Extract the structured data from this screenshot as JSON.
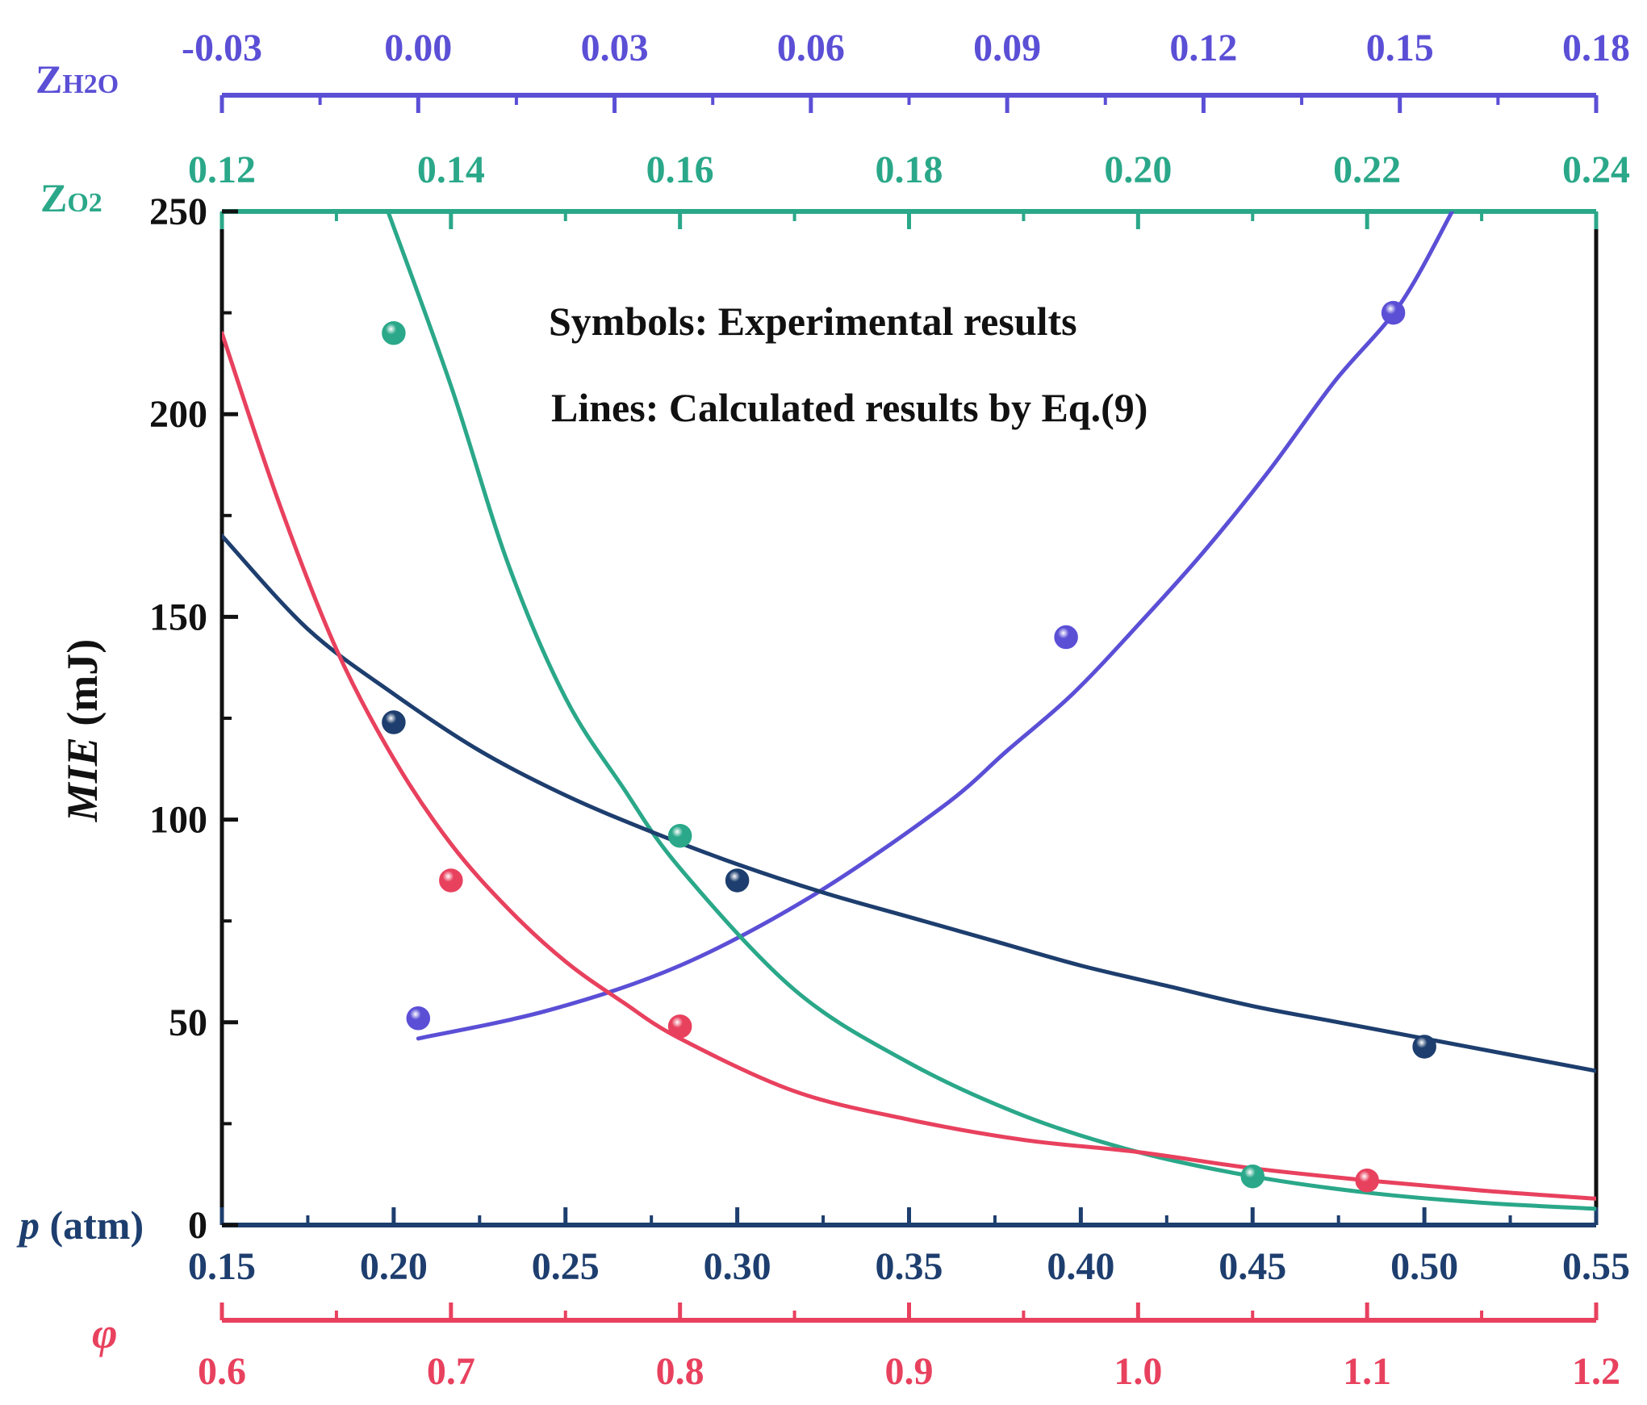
{
  "chart_data": {
    "type": "line",
    "title": "",
    "annotations": [
      "Symbols: Experimental results",
      "Lines: Calculated results by Eq.(9)"
    ],
    "ylabel_main": "MIE",
    "ylabel_unit": " (mJ)",
    "ylim": [
      0,
      250
    ],
    "yticks": [
      "0",
      "50",
      "100",
      "150",
      "200",
      "250"
    ],
    "yticks_values": [
      0,
      50,
      100,
      150,
      200,
      250
    ],
    "axes": {
      "zh2o": {
        "label_main": "Z",
        "label_sub": "H2O",
        "color": "#5b4fd6",
        "range": [
          -0.03,
          0.18
        ],
        "ticks": [
          "-0.03",
          "0.00",
          "0.03",
          "0.06",
          "0.09",
          "0.12",
          "0.15",
          "0.18"
        ],
        "tick_values": [
          -0.03,
          0.0,
          0.03,
          0.06,
          0.09,
          0.12,
          0.15,
          0.18
        ]
      },
      "zo2": {
        "label_main": "Z",
        "label_sub": "O2",
        "color": "#2aa889",
        "range": [
          0.12,
          0.24
        ],
        "ticks": [
          "0.12",
          "0.14",
          "0.16",
          "0.18",
          "0.20",
          "0.22",
          "0.24"
        ],
        "tick_values": [
          0.12,
          0.14,
          0.16,
          0.18,
          0.2,
          0.22,
          0.24
        ]
      },
      "p": {
        "label_main": "p",
        "label_unit": " (atm)",
        "color": "#1d3e6e",
        "range": [
          0.15,
          0.55
        ],
        "ticks": [
          "0.15",
          "0.20",
          "0.25",
          "0.30",
          "0.35",
          "0.40",
          "0.45",
          "0.50",
          "0.55"
        ],
        "tick_values": [
          0.15,
          0.2,
          0.25,
          0.3,
          0.35,
          0.4,
          0.45,
          0.5,
          0.55
        ]
      },
      "phi": {
        "label_main": "φ",
        "color": "#e8415e",
        "range": [
          0.6,
          1.2
        ],
        "ticks": [
          "0.6",
          "0.7",
          "0.8",
          "0.9",
          "1.0",
          "1.1",
          "1.2"
        ],
        "tick_values": [
          0.6,
          0.7,
          0.8,
          0.9,
          1.0,
          1.1,
          1.2
        ]
      }
    },
    "series": [
      {
        "name": "Z_H2O",
        "axis": "zh2o",
        "color": "#5b4fd6",
        "points": [
          [
            0.0,
            51
          ],
          [
            0.099,
            145
          ],
          [
            0.149,
            225
          ]
        ],
        "curve": [
          [
            0.0,
            46
          ],
          [
            0.02,
            53
          ],
          [
            0.04,
            64
          ],
          [
            0.06,
            81
          ],
          [
            0.08,
            103
          ],
          [
            0.09,
            117
          ],
          [
            0.1,
            131
          ],
          [
            0.11,
            148
          ],
          [
            0.12,
            166
          ],
          [
            0.13,
            186
          ],
          [
            0.14,
            208
          ],
          [
            0.15,
            227
          ],
          [
            0.158,
            250
          ]
        ]
      },
      {
        "name": "Z_O2",
        "axis": "zo2",
        "color": "#2aa889",
        "points": [
          [
            0.135,
            220
          ],
          [
            0.16,
            96
          ],
          [
            0.21,
            12
          ]
        ],
        "curve": [
          [
            0.1345,
            250
          ],
          [
            0.14,
            207
          ],
          [
            0.145,
            163
          ],
          [
            0.15,
            130
          ],
          [
            0.155,
            108
          ],
          [
            0.16,
            88
          ],
          [
            0.17,
            58
          ],
          [
            0.18,
            40
          ],
          [
            0.19,
            27
          ],
          [
            0.2,
            18
          ],
          [
            0.21,
            12
          ],
          [
            0.22,
            8
          ],
          [
            0.23,
            5.5
          ],
          [
            0.24,
            4
          ]
        ]
      },
      {
        "name": "p",
        "axis": "p",
        "color": "#1d3e6e",
        "points": [
          [
            0.2,
            124
          ],
          [
            0.3,
            85
          ],
          [
            0.5,
            44
          ]
        ],
        "curve": [
          [
            0.15,
            170
          ],
          [
            0.175,
            147
          ],
          [
            0.2,
            131
          ],
          [
            0.225,
            117
          ],
          [
            0.25,
            106
          ],
          [
            0.275,
            97
          ],
          [
            0.3,
            89
          ],
          [
            0.325,
            82
          ],
          [
            0.35,
            76
          ],
          [
            0.375,
            70
          ],
          [
            0.4,
            64
          ],
          [
            0.425,
            59
          ],
          [
            0.45,
            54
          ],
          [
            0.475,
            50
          ],
          [
            0.5,
            46
          ],
          [
            0.525,
            42
          ],
          [
            0.55,
            38
          ]
        ]
      },
      {
        "name": "phi",
        "axis": "phi",
        "color": "#e8415e",
        "points": [
          [
            0.7,
            85
          ],
          [
            0.8,
            49
          ],
          [
            1.1,
            11
          ]
        ],
        "curve": [
          [
            0.6,
            220
          ],
          [
            0.625,
            178
          ],
          [
            0.65,
            142
          ],
          [
            0.675,
            115
          ],
          [
            0.7,
            94
          ],
          [
            0.725,
            78
          ],
          [
            0.75,
            65
          ],
          [
            0.775,
            55
          ],
          [
            0.8,
            46
          ],
          [
            0.85,
            33
          ],
          [
            0.9,
            26
          ],
          [
            0.95,
            21
          ],
          [
            1.0,
            18
          ],
          [
            1.05,
            14
          ],
          [
            1.1,
            11
          ],
          [
            1.15,
            8.5
          ],
          [
            1.2,
            6.5
          ]
        ]
      }
    ],
    "legend": "none",
    "grid": false
  }
}
